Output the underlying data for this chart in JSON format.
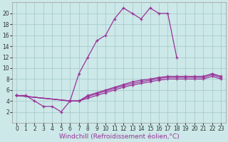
{
  "xlabel": "Windchill (Refroidissement éolien,°C)",
  "bg_color": "#cce8e8",
  "line_color": "#993399",
  "grid_color": "#aacccc",
  "series": [
    {
      "x": [
        0,
        1,
        2,
        3,
        4,
        5,
        6,
        7,
        8,
        9,
        10,
        11,
        12,
        13,
        14,
        15,
        16,
        17,
        18
      ],
      "y": [
        5,
        5,
        4,
        3,
        3,
        2,
        4,
        9,
        12,
        15,
        16,
        19,
        21,
        20,
        19,
        21,
        20,
        20,
        12
      ]
    },
    {
      "x": [
        0,
        6,
        7,
        8,
        9,
        10,
        11,
        12,
        13,
        14,
        15,
        16,
        17,
        18,
        19,
        20,
        21,
        22,
        23
      ],
      "y": [
        5,
        4,
        4,
        5,
        5.5,
        6,
        6.5,
        7,
        7.5,
        7.8,
        8,
        8.3,
        8.5,
        8.5,
        8.5,
        8.5,
        8.5,
        9,
        8.5
      ]
    },
    {
      "x": [
        0,
        6,
        7,
        8,
        9,
        10,
        11,
        12,
        13,
        14,
        15,
        16,
        17,
        18,
        19,
        20,
        21,
        22,
        23
      ],
      "y": [
        5,
        4,
        4,
        4.8,
        5.3,
        5.8,
        6.3,
        6.8,
        7.2,
        7.5,
        7.8,
        8.1,
        8.3,
        8.3,
        8.3,
        8.3,
        8.3,
        8.8,
        8.3
      ]
    },
    {
      "x": [
        0,
        6,
        7,
        8,
        9,
        10,
        11,
        12,
        13,
        14,
        15,
        16,
        17,
        18,
        19,
        20,
        21,
        22,
        23
      ],
      "y": [
        5,
        4,
        4,
        4.5,
        5.0,
        5.5,
        6.0,
        6.5,
        6.9,
        7.2,
        7.5,
        7.8,
        8.0,
        8.0,
        8.0,
        8.0,
        8.0,
        8.5,
        8.0
      ]
    }
  ],
  "xlim": [
    -0.5,
    23.5
  ],
  "ylim": [
    0,
    22
  ],
  "xticks": [
    0,
    1,
    2,
    3,
    4,
    5,
    6,
    7,
    8,
    9,
    10,
    11,
    12,
    13,
    14,
    15,
    16,
    17,
    18,
    19,
    20,
    21,
    22,
    23
  ],
  "yticks": [
    2,
    4,
    6,
    8,
    10,
    12,
    14,
    16,
    18,
    20
  ],
  "tick_fontsize": 5.5,
  "label_fontsize": 6.5
}
